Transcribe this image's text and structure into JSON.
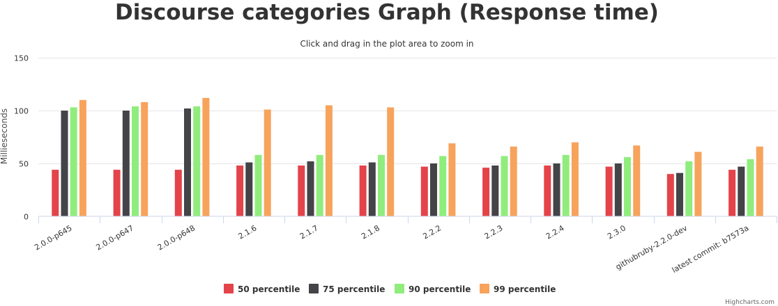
{
  "chart_data": {
    "type": "bar",
    "title": "Discourse categories Graph (Response time)",
    "subtitle": "Click and drag in the plot area to zoom in",
    "ylabel": "Millieseconds",
    "xlabel": "",
    "ylim": [
      0,
      150
    ],
    "yticks": [
      0,
      50,
      100,
      150
    ],
    "grid": true,
    "legend_placement": "bottom-center",
    "categories": [
      "2.0.0-p645",
      "2.0.0-p647",
      "2.0.0-p648",
      "2.1.6",
      "2.1.7",
      "2.1.8",
      "2.2.2",
      "2.2.3",
      "2.2.4",
      "2.3.0",
      "githubruby-2.2.0-dev",
      "latest commit: b7573a"
    ],
    "series": [
      {
        "name": "50 percentile",
        "color": "#e4434a",
        "values": [
          44,
          44,
          44,
          48,
          48,
          48,
          47,
          46,
          48,
          47,
          40,
          44
        ]
      },
      {
        "name": "75 percentile",
        "color": "#434348",
        "values": [
          100,
          100,
          102,
          51,
          52,
          51,
          50,
          48,
          50,
          50,
          41,
          47
        ]
      },
      {
        "name": "90 percentile",
        "color": "#90ed7d",
        "values": [
          103,
          104,
          104,
          58,
          58,
          58,
          57,
          57,
          58,
          56,
          52,
          54
        ]
      },
      {
        "name": "99 percentile",
        "color": "#f7a35c",
        "values": [
          110,
          108,
          112,
          101,
          105,
          103,
          69,
          66,
          70,
          67,
          61,
          66
        ]
      }
    ]
  },
  "credits": "Highcharts.com",
  "colors": {
    "grid": "#e6e6e6",
    "axis_line": "#ccd6eb",
    "text": "#333333"
  }
}
